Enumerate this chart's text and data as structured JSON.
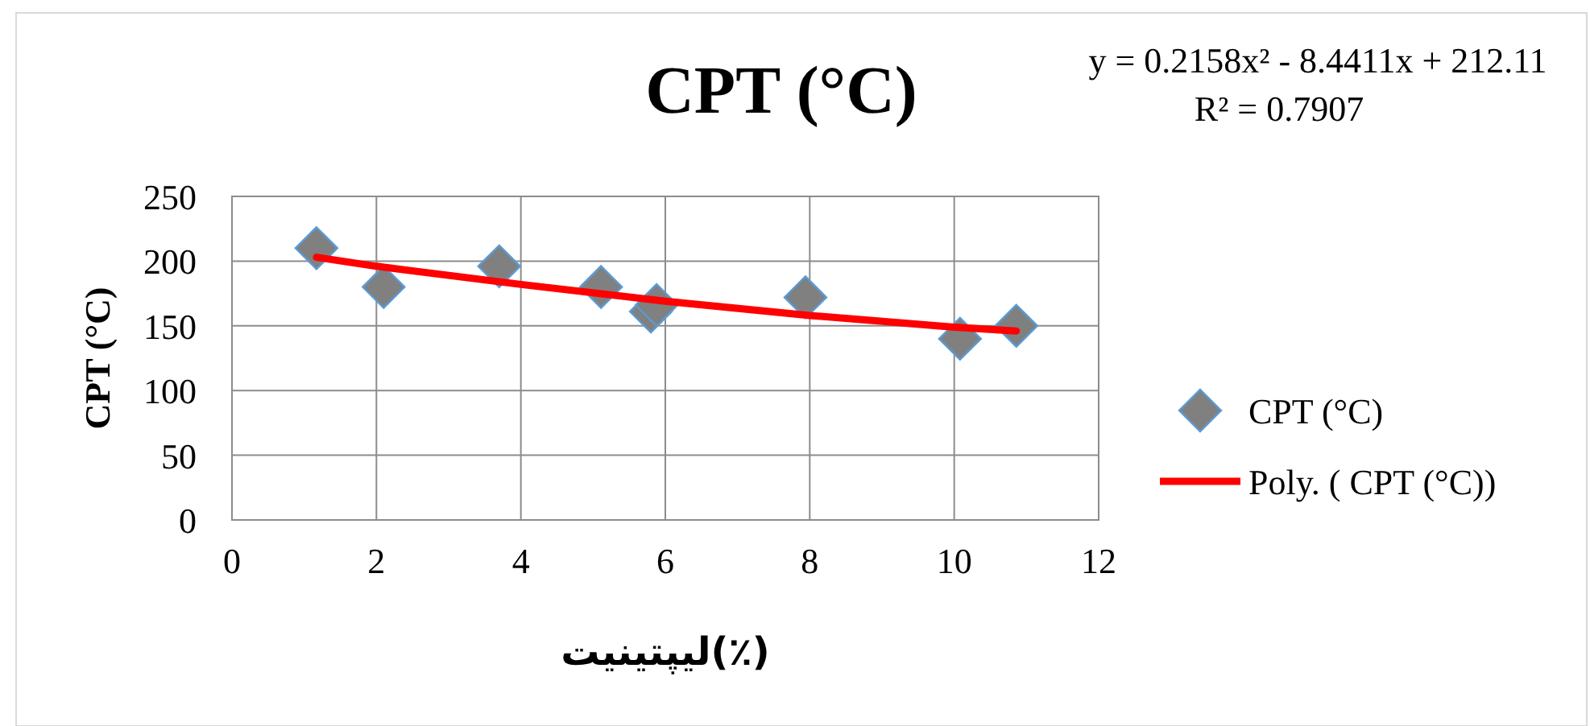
{
  "chart_data": {
    "type": "scatter",
    "title": "CPT (°C)",
    "xlabel": "لیپتینیت(٪)",
    "ylabel": "CPT (°C)",
    "annotations": [
      "y = 0.2158x² - 8.4411x + 212.11",
      "R² = 0.7907"
    ],
    "xlim": [
      0,
      12
    ],
    "xticks": [
      0,
      2,
      4,
      6,
      8,
      10,
      12
    ],
    "ylim": [
      0,
      250
    ],
    "yticks": [
      0,
      50,
      100,
      150,
      200,
      250
    ],
    "grid": true,
    "legend": "right",
    "series": [
      {
        "name": "CPT (°C)",
        "color": "#808080",
        "marker": "diamond",
        "x": [
          1.17,
          2.1,
          3.7,
          5.11,
          5.8,
          5.88,
          7.94,
          10.08,
          10.86
        ],
        "values": [
          210,
          180,
          196,
          180,
          161,
          166,
          172,
          140,
          150
        ]
      },
      {
        "name": "Poly. ( CPT (°C))",
        "type": "line",
        "color": "#ff0000",
        "marker": "none",
        "line_style": "solid",
        "x": [
          1.17,
          2,
          4,
          6,
          8,
          10,
          10.86
        ],
        "values": [
          203,
          196,
          182,
          169,
          158,
          149,
          146
        ]
      }
    ]
  }
}
